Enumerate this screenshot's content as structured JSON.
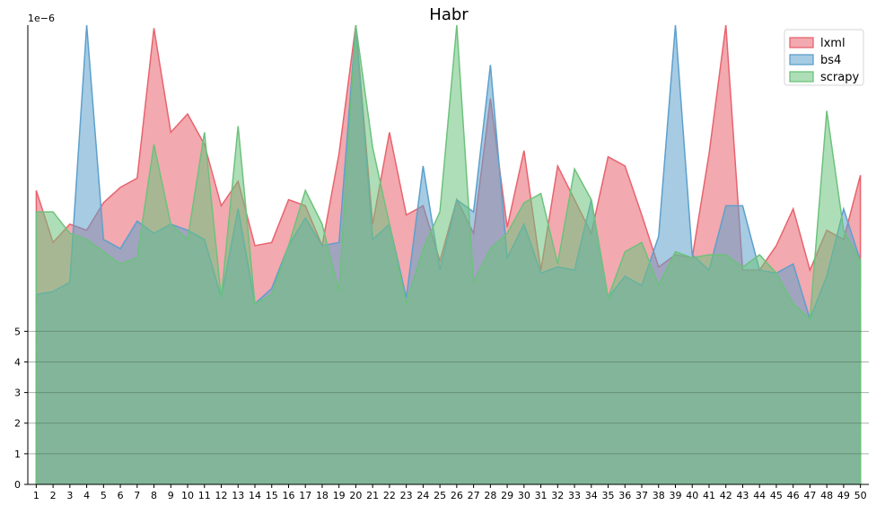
{
  "chart_data": {
    "type": "area",
    "title": "Habr",
    "offset_text": "1e−6",
    "xlabel": "",
    "ylabel": "",
    "x": [
      1,
      2,
      3,
      4,
      5,
      6,
      7,
      8,
      9,
      10,
      11,
      12,
      13,
      14,
      15,
      16,
      17,
      18,
      19,
      20,
      21,
      22,
      23,
      24,
      25,
      26,
      27,
      28,
      29,
      30,
      31,
      32,
      33,
      34,
      35,
      36,
      37,
      38,
      39,
      40,
      41,
      42,
      43,
      44,
      45,
      46,
      47,
      48,
      49,
      50
    ],
    "y_ticks": [
      0,
      1,
      2,
      3,
      4,
      5
    ],
    "ylim": [
      0,
      15
    ],
    "xlim": [
      0.5,
      50.5
    ],
    "grid": "horizontal",
    "legend_position": "top-right",
    "series": [
      {
        "name": "lxml",
        "color": "#e8636e",
        "values": [
          9.6,
          7.9,
          8.5,
          8.3,
          9.2,
          9.7,
          10.0,
          14.9,
          11.5,
          12.1,
          11.1,
          9.1,
          9.9,
          7.8,
          7.9,
          9.3,
          9.1,
          7.8,
          10.8,
          15.0,
          8.5,
          11.5,
          8.8,
          9.1,
          7.3,
          9.3,
          8.2,
          12.6,
          8.4,
          10.9,
          7.0,
          10.4,
          9.3,
          8.2,
          10.7,
          10.4,
          8.8,
          7.1,
          7.5,
          7.4,
          10.8,
          15.0,
          7.0,
          7.0,
          7.8,
          9.0,
          7.0,
          8.3,
          8.0,
          10.1
        ]
      },
      {
        "name": "bs4",
        "color": "#5da0cc",
        "values": [
          6.2,
          6.3,
          6.6,
          15.0,
          8.0,
          7.7,
          8.6,
          8.2,
          8.5,
          8.3,
          8.0,
          6.1,
          9.0,
          5.9,
          6.4,
          7.8,
          8.7,
          7.8,
          7.9,
          15.0,
          8.0,
          8.5,
          6.1,
          10.4,
          7.0,
          9.3,
          8.9,
          13.7,
          7.4,
          8.5,
          6.9,
          7.1,
          7.0,
          9.3,
          6.1,
          6.8,
          6.5,
          8.1,
          15.0,
          7.5,
          7.0,
          9.1,
          9.1,
          7.0,
          6.9,
          7.2,
          5.4,
          6.8,
          9.0,
          7.3
        ]
      },
      {
        "name": "scrapy",
        "color": "#6cc27c",
        "values": [
          8.9,
          8.9,
          8.2,
          8.0,
          7.6,
          7.2,
          7.4,
          11.1,
          8.5,
          8.0,
          11.5,
          6.1,
          11.7,
          5.9,
          6.2,
          7.8,
          9.6,
          8.5,
          6.3,
          15.0,
          11.0,
          8.5,
          5.9,
          7.7,
          8.9,
          15.0,
          6.6,
          7.7,
          8.2,
          9.2,
          9.5,
          7.2,
          10.3,
          9.3,
          6.1,
          7.6,
          7.9,
          6.5,
          7.6,
          7.4,
          7.5,
          7.5,
          7.1,
          7.5,
          6.9,
          5.9,
          5.4,
          12.2,
          8.3,
          7.3
        ]
      }
    ]
  }
}
